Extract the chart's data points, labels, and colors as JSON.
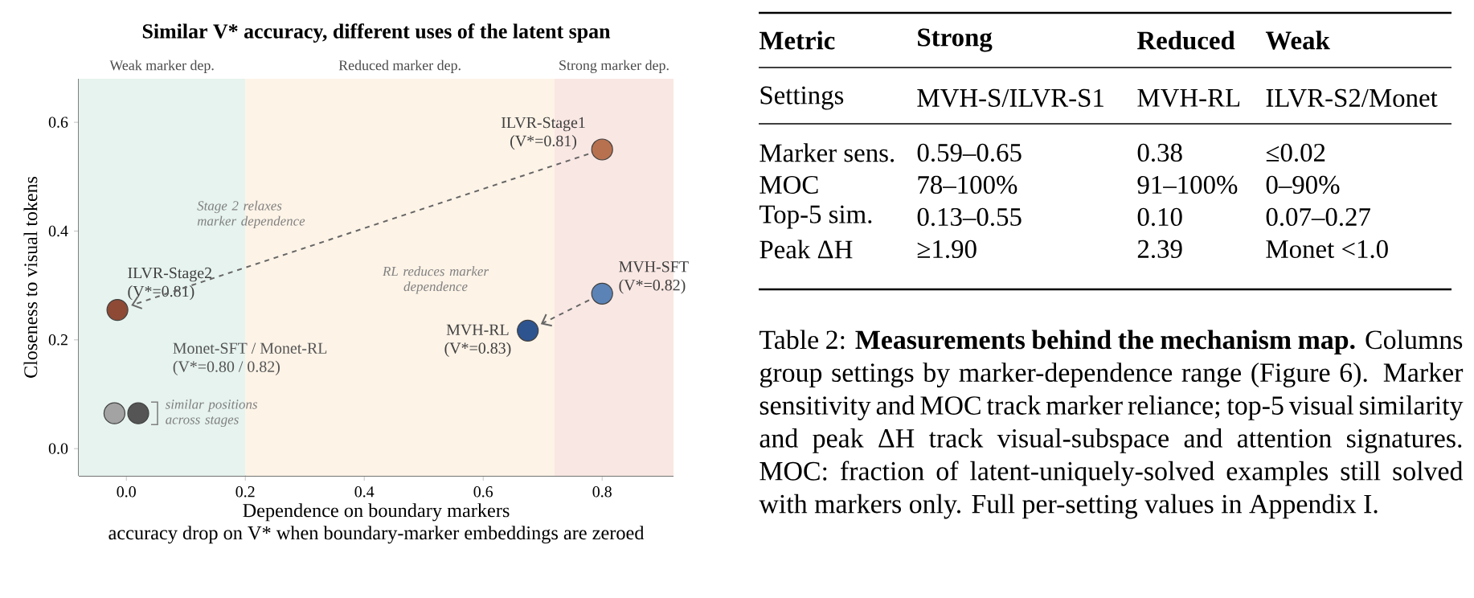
{
  "chart_data": [
    {
      "type": "scatter",
      "title": "Similar V* accuracy, different uses of the latent span",
      "xlabel": "Dependence on boundary markers",
      "ylabel": "Closeness to visual tokens",
      "xlim": [
        -0.08,
        0.92
      ],
      "ylim": [
        -0.05,
        0.68
      ],
      "xticks": [
        {
          "value": 0,
          "label": "0.0"
        },
        0.2,
        0.4,
        0.6,
        0.8
      ],
      "yticks": [
        {
          "value": 0,
          "label": "0.0"
        },
        0.2,
        0.4,
        0.6
      ],
      "series": [
        {
          "name": "ILVR-Stage1",
          "color": "#b8714f",
          "x": [
            0.8
          ],
          "values": [
            0.55
          ]
        },
        {
          "name": "ILVR-Stage2",
          "color": "#8e4a35",
          "x": [
            -0.015
          ],
          "values": [
            0.255
          ]
        },
        {
          "name": "MVH-SFT",
          "color": "#5b83b6",
          "x": [
            0.8
          ],
          "values": [
            0.285
          ]
        },
        {
          "name": "MVH-RL",
          "color": "#2e5490",
          "x": [
            0.675
          ],
          "values": [
            0.217
          ]
        },
        {
          "name": "Monet-SFT / Monet-RL",
          "colors": [
            "#a3a3a3",
            "#555555"
          ],
          "x": [
            -0.02,
            0.02
          ],
          "values": [
            0.065,
            0.065
          ]
        }
      ],
      "bands": [
        {
          "axis": "x",
          "from": -0.08,
          "to": 0.2,
          "label": "Weak marker dep.",
          "color": "#e6f3ee"
        },
        {
          "axis": "x",
          "from": 0.2,
          "to": 0.72,
          "label": "Reduced marker dep.",
          "color": "#fdf3e7"
        },
        {
          "axis": "x",
          "from": 0.72,
          "to": 0.92,
          "label": "Strong marker dep.",
          "color": "#f9e7e3"
        }
      ],
      "annotations": [
        "(V*=0.81)",
        "(V*=0.81)",
        "(V*=0.82)",
        "(V*=0.83)",
        "(V*=0.80 / 0.82)",
        "Stage 2 relaxes marker dependence",
        "RL reduces marker dependence",
        "similar positions across stages",
        "accuracy drop on V* when boundary-marker embeddings are zeroed"
      ]
    },
    {
      "type": "other",
      "annotations": [
        "Metric",
        "Strong",
        "Reduced",
        "Weak",
        "Settings",
        "MVH-S/ILVR-S1",
        "MVH-RL",
        "ILVR-S2/Monet",
        "Marker sens.",
        "0.59–0.65",
        "0.38",
        "≤0.02",
        "MOC",
        "78–100%",
        "91–100%",
        "0–90%",
        "Top-5 sim.",
        "0.13–0.55",
        "0.10",
        "0.07–0.27",
        "Peak ΔH",
        "≥1.90",
        "2.39",
        "Monet <1.0",
        "Table 2: **Measurements behind the mechanism map.** Columns group settings by marker-dependence range (Figure 6). Marker sensitivity and MOC track marker reliance; top-5 visual similarity and peak ΔH track visual-subspace and attention signatures. MOC: fraction of latent-uniquely-solved examples still solved with markers only. Full per-setting values in Appendix I."
      ]
    }
  ]
}
